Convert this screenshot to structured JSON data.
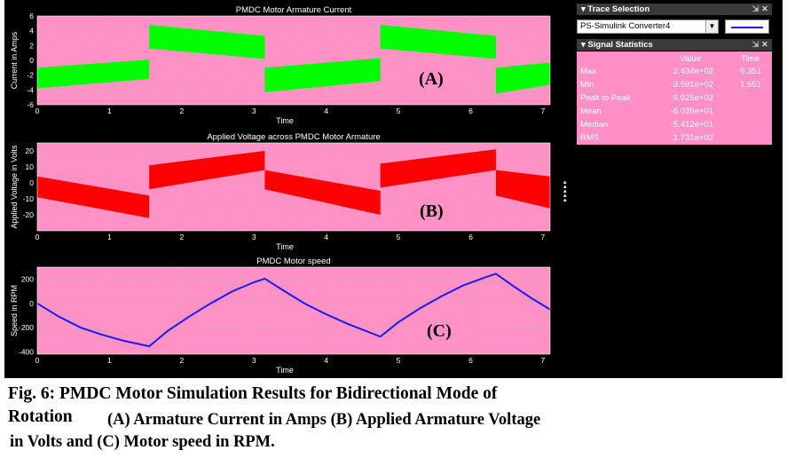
{
  "plots": [
    {
      "id": "current",
      "title": "PMDC Motor Armature Current",
      "ylabel": "Current in Amps",
      "xlabel": "Time",
      "annotation": "(A)",
      "color": "#00ff00",
      "kind": "band",
      "xlim": [
        0,
        7.1
      ],
      "ylim": [
        -6,
        6
      ],
      "yticks": [
        -6,
        -4,
        -2,
        0,
        2,
        4,
        6
      ],
      "xticks": [
        0,
        1,
        2,
        3,
        4,
        5,
        6,
        7
      ],
      "segments": [
        {
          "x0": 0.0,
          "x1": 1.55,
          "top": [
            -1.0,
            0.1
          ],
          "bottom": [
            -3.8,
            -2.5
          ]
        },
        {
          "x0": 1.55,
          "x1": 3.15,
          "top": [
            4.8,
            3.3
          ],
          "bottom": [
            1.6,
            0.2
          ]
        },
        {
          "x0": 3.15,
          "x1": 4.75,
          "top": [
            -1.0,
            0.3
          ],
          "bottom": [
            -4.3,
            -2.8
          ]
        },
        {
          "x0": 4.75,
          "x1": 6.35,
          "top": [
            4.8,
            3.3
          ],
          "bottom": [
            1.6,
            0.2
          ]
        },
        {
          "x0": 6.35,
          "x1": 7.1,
          "top": [
            -1.0,
            -0.3
          ],
          "bottom": [
            -4.5,
            -3.3
          ]
        }
      ]
    },
    {
      "id": "voltage",
      "title": "Applied Voltage across PMDC Motor Armature",
      "ylabel": "Applied Voltage in Volts",
      "xlabel": "Time",
      "annotation": "(B)",
      "color": "#ff0000",
      "kind": "band",
      "xlim": [
        0,
        7.1
      ],
      "ylim": [
        -30,
        25
      ],
      "yticks": [
        -20,
        -10,
        0,
        10,
        20
      ],
      "xticks": [
        0,
        1,
        2,
        3,
        4,
        5,
        6,
        7
      ],
      "segments": [
        {
          "x0": 0.0,
          "x1": 1.55,
          "top": [
            4.0,
            -8.0
          ],
          "bottom": [
            -9.0,
            -22.0
          ]
        },
        {
          "x0": 1.55,
          "x1": 3.15,
          "top": [
            11.0,
            20.0
          ],
          "bottom": [
            -4.0,
            8.0
          ]
        },
        {
          "x0": 3.15,
          "x1": 4.75,
          "top": [
            8.0,
            -5.0
          ],
          "bottom": [
            -4.0,
            -20.0
          ]
        },
        {
          "x0": 4.75,
          "x1": 6.35,
          "top": [
            12.0,
            21.0
          ],
          "bottom": [
            -3.0,
            8.0
          ]
        },
        {
          "x0": 6.35,
          "x1": 7.1,
          "top": [
            8.0,
            4.0
          ],
          "bottom": [
            -8.0,
            -16.0
          ]
        }
      ]
    },
    {
      "id": "speed",
      "title": "PMDC Motor speed",
      "ylabel": "Speed in RPM",
      "xlabel": "Time",
      "annotation": "(C)",
      "color": "#1a1af0",
      "kind": "line",
      "xlim": [
        0,
        7.1
      ],
      "ylim": [
        -420,
        300
      ],
      "yticks": [
        -400,
        -200,
        0,
        200
      ],
      "xticks": [
        0,
        1,
        2,
        3,
        4,
        5,
        6,
        7
      ],
      "x": [
        0,
        0.3,
        0.6,
        0.9,
        1.2,
        1.55,
        1.8,
        2.1,
        2.4,
        2.7,
        3.0,
        3.15,
        3.4,
        3.7,
        4.0,
        4.3,
        4.75,
        5.0,
        5.3,
        5.6,
        5.9,
        6.2,
        6.35,
        6.6,
        6.85,
        7.1
      ],
      "y": [
        0,
        -110,
        -200,
        -260,
        -310,
        -355,
        -230,
        -110,
        0,
        100,
        175,
        205,
        110,
        0,
        -90,
        -170,
        -275,
        -155,
        -40,
        60,
        150,
        215,
        245,
        140,
        40,
        -50
      ]
    }
  ],
  "trace_selection": {
    "title": "Trace Selection",
    "selected": "PS-Simulink Converter4",
    "line_color": "#1a1af0"
  },
  "signal_statistics": {
    "title": "Signal Statistics",
    "columns": [
      "Value",
      "Time"
    ],
    "rows": [
      {
        "label": "Max",
        "value": "2.434e+02",
        "time": "6.351"
      },
      {
        "label": "Min",
        "value": "-3.591e+02",
        "time": "1.551"
      },
      {
        "label": "Peak to Peak",
        "value": "6.025e+02",
        "time": ""
      },
      {
        "label": "Mean",
        "value": "-6.039e+01",
        "time": ""
      },
      {
        "label": "Median",
        "value": "-5.412e+01",
        "time": ""
      },
      {
        "label": "RMS",
        "value": "1.731e+02",
        "time": ""
      }
    ]
  },
  "caption": {
    "line1": "Fig. 6:  PMDC Motor Simulation Results for Bidirectional Mode of",
    "line2a": "Rotation",
    "line2b": "(A) Armature Current in Amps  (B) Applied Armature Voltage",
    "line3": "in Volts and (C) Motor speed in RPM."
  },
  "colors": {
    "plot_background": "#ff91c4",
    "scope_background": "#000000"
  }
}
